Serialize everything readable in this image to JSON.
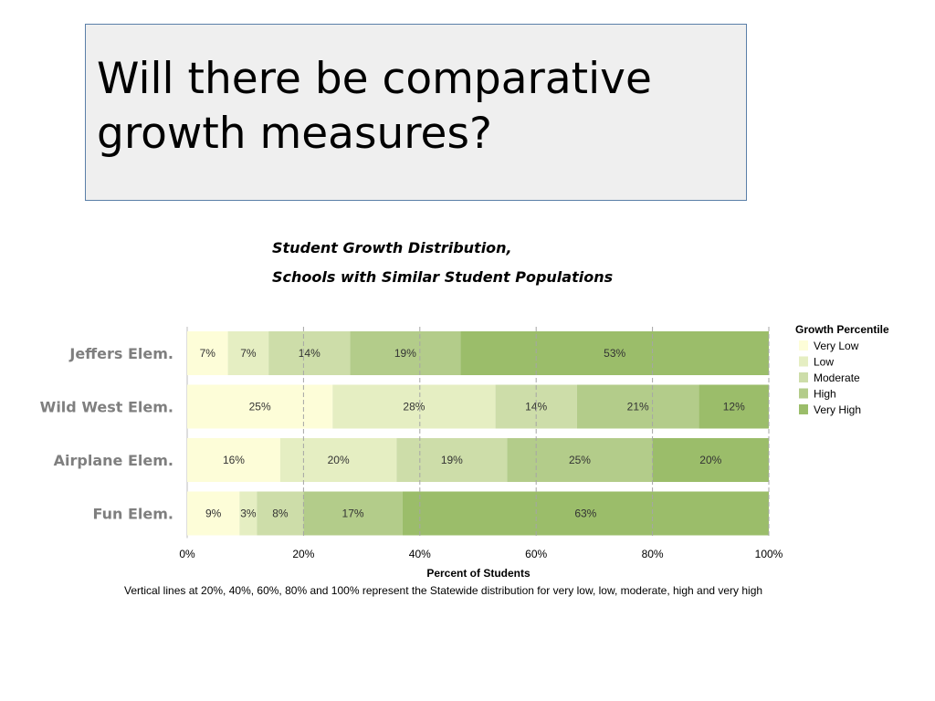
{
  "slide": {
    "title_line1": "Will there be comparative",
    "title_line2": "growth measures?"
  },
  "chart_data": {
    "type": "bar",
    "orientation": "horizontal",
    "stacked": true,
    "title_line1": "Student Growth Distribution,",
    "title_line2": "Schools with Similar Student Populations",
    "xlabel": "Percent of Students",
    "xlim": [
      0,
      100
    ],
    "xticks": [
      "0%",
      "20%",
      "40%",
      "60%",
      "80%",
      "100%"
    ],
    "categories": [
      "Jeffers Elem.",
      "Wild West Elem.",
      "Airplane Elem.",
      "Fun Elem."
    ],
    "legend_title": "Growth Percentile",
    "legend_position": "right",
    "series": [
      {
        "name": "Very Low",
        "color": "#fdfdd8",
        "values": [
          7,
          25,
          16,
          9
        ]
      },
      {
        "name": "Low",
        "color": "#e5eec2",
        "values": [
          7,
          28,
          20,
          3
        ]
      },
      {
        "name": "Moderate",
        "color": "#cddda9",
        "values": [
          14,
          14,
          19,
          8
        ]
      },
      {
        "name": "High",
        "color": "#b3cc8a",
        "values": [
          19,
          21,
          25,
          17
        ]
      },
      {
        "name": "Very High",
        "color": "#9bbd6a",
        "values": [
          53,
          12,
          20,
          63
        ]
      }
    ],
    "footnote": "Vertical lines at 20%, 40%, 60%, 80% and 100% represent the Statewide distribution for very low, low, moderate, high and very high",
    "gridlines": [
      20,
      40,
      60,
      80,
      100
    ]
  }
}
